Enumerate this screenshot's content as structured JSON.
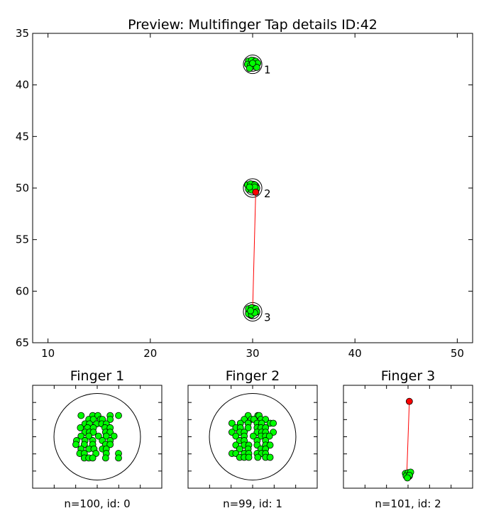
{
  "chart_data": [
    {
      "type": "scatter",
      "title": "Preview: Multifinger Tap details ID:42",
      "xlim": [
        8.5,
        51.5
      ],
      "ylim": [
        65,
        35
      ],
      "y_inverted": true,
      "xticks": [
        10,
        20,
        30,
        40,
        50
      ],
      "yticks": [
        35,
        40,
        45,
        50,
        55,
        60,
        65
      ],
      "grid": false,
      "fingers": [
        {
          "label": "1",
          "center": [
            30,
            38
          ],
          "radius": 0.9
        },
        {
          "label": "2",
          "center": [
            30,
            50
          ],
          "radius": 0.9
        },
        {
          "label": "3",
          "center": [
            30,
            62
          ],
          "radius": 0.9
        }
      ],
      "green_points": [
        [
          29.6,
          37.7
        ],
        [
          29.9,
          37.6
        ],
        [
          30.3,
          37.7
        ],
        [
          30.5,
          37.9
        ],
        [
          29.5,
          38.0
        ],
        [
          29.8,
          38.1
        ],
        [
          30.1,
          38.2
        ],
        [
          30.4,
          38.3
        ],
        [
          29.7,
          38.4
        ],
        [
          30.0,
          37.9
        ],
        [
          29.5,
          49.7
        ],
        [
          29.8,
          49.6
        ],
        [
          30.2,
          49.7
        ],
        [
          30.4,
          50.0
        ],
        [
          29.6,
          50.1
        ],
        [
          29.9,
          50.2
        ],
        [
          30.2,
          49.9
        ],
        [
          29.7,
          49.9
        ],
        [
          29.6,
          61.7
        ],
        [
          29.9,
          61.6
        ],
        [
          30.3,
          61.7
        ],
        [
          30.4,
          62.0
        ],
        [
          29.6,
          62.2
        ],
        [
          29.9,
          62.3
        ],
        [
          30.2,
          62.1
        ],
        [
          29.8,
          61.9
        ]
      ],
      "red_point": [
        30.3,
        50.4
      ],
      "red_line": [
        [
          30.3,
          50.4
        ],
        [
          30.0,
          61.9
        ]
      ],
      "point_colors": {
        "green": "#00ff00",
        "red": "#ff0000",
        "line": "#ff0000",
        "circle": "#000000"
      }
    },
    {
      "type": "scatter",
      "title": "Finger 1",
      "caption": "n=100, id: 0",
      "xlim": [
        -1,
        1
      ],
      "ylim": [
        -0.8,
        0.8
      ],
      "axis_ticks_visible": false,
      "circle": {
        "center": [
          0,
          0
        ],
        "radius": 0.67
      },
      "green_points": [
        [
          -0.25,
          0.33
        ],
        [
          -0.07,
          0.33
        ],
        [
          0.01,
          0.33
        ],
        [
          0.2,
          0.33
        ],
        [
          0.33,
          0.33
        ],
        [
          -0.13,
          0.27
        ],
        [
          -0.06,
          0.27
        ],
        [
          0.05,
          0.27
        ],
        [
          0.08,
          0.27
        ],
        [
          0.2,
          0.27
        ],
        [
          -0.19,
          0.2
        ],
        [
          -0.12,
          0.2
        ],
        [
          -0.01,
          0.2
        ],
        [
          0.07,
          0.2
        ],
        [
          0.14,
          0.2
        ],
        [
          -0.26,
          0.14
        ],
        [
          -0.15,
          0.14
        ],
        [
          -0.06,
          0.14
        ],
        [
          0.12,
          0.14
        ],
        [
          0.2,
          0.14
        ],
        [
          -0.19,
          0.07
        ],
        [
          -0.12,
          0.07
        ],
        [
          -0.06,
          0.07
        ],
        [
          0.13,
          0.07
        ],
        [
          0.2,
          0.07
        ],
        [
          -0.25,
          0.01
        ],
        [
          -0.13,
          0.01
        ],
        [
          0.02,
          0.01
        ],
        [
          0.14,
          0.01
        ],
        [
          0.26,
          0.01
        ],
        [
          -0.32,
          -0.06
        ],
        [
          -0.19,
          -0.06
        ],
        [
          -0.07,
          -0.06
        ],
        [
          0.08,
          -0.06
        ],
        [
          0.2,
          -0.06
        ],
        [
          -0.33,
          -0.12
        ],
        [
          -0.2,
          -0.12
        ],
        [
          -0.07,
          -0.12
        ],
        [
          0.13,
          -0.12
        ],
        [
          0.2,
          -0.12
        ],
        [
          -0.25,
          -0.19
        ],
        [
          -0.13,
          -0.19
        ],
        [
          -0.05,
          -0.19
        ],
        [
          0.08,
          -0.19
        ],
        [
          0.14,
          -0.19
        ],
        [
          -0.27,
          -0.26
        ],
        [
          -0.2,
          -0.26
        ],
        [
          -0.02,
          -0.26
        ],
        [
          0.14,
          -0.26
        ],
        [
          0.33,
          -0.26
        ],
        [
          -0.2,
          -0.33
        ],
        [
          -0.13,
          -0.33
        ],
        [
          -0.07,
          -0.33
        ],
        [
          0.13,
          -0.33
        ],
        [
          0.33,
          -0.33
        ]
      ]
    },
    {
      "type": "scatter",
      "title": "Finger 2",
      "caption": "n=99, id: 1",
      "xlim": [
        -1,
        1
      ],
      "ylim": [
        -0.8,
        0.8
      ],
      "axis_ticks_visible": false,
      "circle": {
        "center": [
          0,
          0
        ],
        "radius": 0.67
      },
      "green_points": [
        [
          -0.07,
          0.33
        ],
        [
          0.08,
          0.33
        ],
        [
          0.1,
          0.33
        ],
        [
          -0.13,
          0.27
        ],
        [
          -0.02,
          0.27
        ],
        [
          0.02,
          0.27
        ],
        [
          0.13,
          0.27
        ],
        [
          0.2,
          0.27
        ],
        [
          -0.32,
          0.21
        ],
        [
          -0.19,
          0.21
        ],
        [
          -0.07,
          0.21
        ],
        [
          0.07,
          0.21
        ],
        [
          0.14,
          0.21
        ],
        [
          0.27,
          0.21
        ],
        [
          0.32,
          0.21
        ],
        [
          -0.26,
          0.14
        ],
        [
          -0.19,
          0.14
        ],
        [
          -0.07,
          0.14
        ],
        [
          0.07,
          0.14
        ],
        [
          0.13,
          0.14
        ],
        [
          0.2,
          0.14
        ],
        [
          -0.32,
          0.07
        ],
        [
          -0.2,
          0.07
        ],
        [
          -0.13,
          0.07
        ],
        [
          0.07,
          0.07
        ],
        [
          0.14,
          0.07
        ],
        [
          0.2,
          0.07
        ],
        [
          0.32,
          0.07
        ],
        [
          -0.26,
          0.01
        ],
        [
          -0.13,
          0.01
        ],
        [
          0.01,
          0.01
        ],
        [
          0.13,
          0.01
        ],
        [
          0.2,
          0.01
        ],
        [
          0.26,
          0.01
        ],
        [
          -0.2,
          -0.06
        ],
        [
          -0.13,
          -0.06
        ],
        [
          0.07,
          -0.06
        ],
        [
          0.2,
          -0.06
        ],
        [
          -0.26,
          -0.13
        ],
        [
          -0.13,
          -0.13
        ],
        [
          -0.06,
          -0.13
        ],
        [
          0.07,
          -0.13
        ],
        [
          0.2,
          -0.13
        ],
        [
          0.27,
          -0.13
        ],
        [
          -0.2,
          -0.19
        ],
        [
          -0.07,
          -0.19
        ],
        [
          0.13,
          -0.19
        ],
        [
          0.2,
          -0.19
        ],
        [
          -0.32,
          -0.26
        ],
        [
          -0.26,
          -0.26
        ],
        [
          -0.13,
          -0.26
        ],
        [
          -0.06,
          -0.26
        ],
        [
          0.07,
          -0.26
        ],
        [
          0.14,
          -0.26
        ],
        [
          0.2,
          -0.26
        ],
        [
          -0.2,
          -0.32
        ],
        [
          -0.13,
          -0.32
        ],
        [
          -0.06,
          -0.32
        ],
        [
          0.08,
          -0.32
        ],
        [
          0.2,
          -0.32
        ],
        [
          0.27,
          -0.32
        ]
      ]
    },
    {
      "type": "scatter",
      "title": "Finger 3",
      "caption": "n=101, id: 2",
      "xlim": [
        -1,
        1
      ],
      "ylim": [
        -0.8,
        0.8
      ],
      "axis_ticks_visible": false,
      "circle": {
        "center": [
          0,
          -0.6
        ],
        "radius": 0.07
      },
      "green_points": [
        [
          -0.04,
          -0.57
        ],
        [
          0.0,
          -0.56
        ],
        [
          0.04,
          -0.55
        ],
        [
          -0.03,
          -0.61
        ],
        [
          0.02,
          -0.6
        ],
        [
          -0.01,
          -0.64
        ]
      ],
      "red_point": [
        0.02,
        0.55
      ],
      "red_line": [
        [
          0.02,
          0.55
        ],
        [
          -0.02,
          -0.6
        ]
      ]
    }
  ]
}
